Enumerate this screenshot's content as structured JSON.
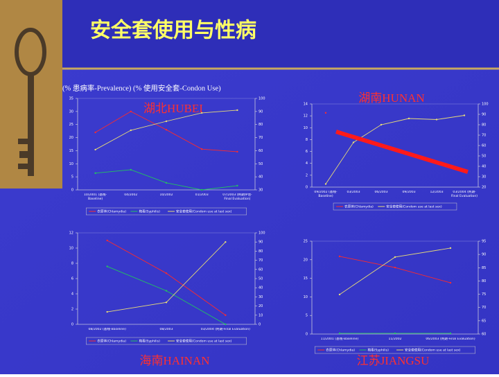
{
  "slide": {
    "title": "安全套使用与性病",
    "subtitle": "(% 患病率-Prevalence)   (% 使用安全套-Condon Use)"
  },
  "chart_data": [
    {
      "type": "line",
      "title": "湖北HUBEI",
      "categories": [
        "10/2001 (基线-Baseline)",
        "04/2002",
        "10/2002",
        "01/2003",
        "07/2003 (终期评估-Final Evaluation)"
      ],
      "series": [
        {
          "name": "衣原体(Chlamydia)",
          "color": "#ff2a2a",
          "values": [
            22,
            30,
            23,
            15.6,
            14.6
          ]
        },
        {
          "name": "梅毒(Syphilis)",
          "color": "#22c55e",
          "values": [
            6.4,
            7.7,
            2.7,
            0,
            1.6
          ]
        },
        {
          "name": "安全套使用(Condom use at last sex)",
          "color": "#e8dc78",
          "axis": "y2",
          "values": [
            60.8,
            75.6,
            82.5,
            88.9,
            91
          ]
        }
      ],
      "ylim": [
        0,
        35
      ],
      "yticks": [
        0,
        5,
        10,
        15,
        20,
        25,
        30,
        35
      ],
      "y2lim": [
        30,
        100
      ],
      "y2ticks": [
        30,
        40,
        50,
        60,
        70,
        80,
        90,
        100
      ]
    },
    {
      "type": "line",
      "title": "湖南HUNAN",
      "categories": [
        "09/2002 (基线-Baseline)",
        "03/2003",
        "06/2003",
        "09/2003",
        "12/2003",
        "03/2004 (终期-Final Evaluation)"
      ],
      "series": [
        {
          "name": "衣原体(Chlamydia)",
          "color": "#ff2a2a",
          "values": [
            12.5,
            null,
            null,
            null,
            null,
            null
          ]
        },
        {
          "name": "安全套使用(Condom use at last sex)",
          "color": "#e8dc78",
          "axis": "y2",
          "values": [
            23,
            63,
            80,
            86,
            85,
            89
          ]
        }
      ],
      "ylim": [
        0,
        14
      ],
      "yticks": [
        0,
        2,
        4,
        6,
        8,
        10,
        12,
        14
      ],
      "y2lim": [
        20,
        100
      ],
      "y2ticks": [
        20,
        30,
        40,
        50,
        60,
        70,
        80,
        90,
        100
      ]
    },
    {
      "type": "line",
      "title": "海南HAINAN",
      "categories": [
        "08/2002 (基线-Baseline)",
        "08/2003",
        "03/2004 (终期-Final Evaluation)"
      ],
      "series": [
        {
          "name": "衣原体(Chlamydia)",
          "color": "#ff2a2a",
          "values": [
            11,
            6.7,
            1.2
          ]
        },
        {
          "name": "梅毒(Syphilis)",
          "color": "#22c55e",
          "values": [
            7.6,
            4.4,
            0
          ]
        },
        {
          "name": "安全套使用(Condom use at last sex)",
          "color": "#e8dc78",
          "axis": "y2",
          "values": [
            13.6,
            24,
            90
          ]
        }
      ],
      "ylim": [
        0,
        12
      ],
      "yticks": [
        0,
        2,
        4,
        6,
        8,
        10,
        12
      ],
      "y2lim": [
        0,
        100
      ],
      "y2ticks": [
        0,
        10,
        20,
        30,
        40,
        50,
        60,
        70,
        80,
        90,
        100
      ]
    },
    {
      "type": "line",
      "title": "江苏JIANGSU",
      "categories": [
        "11/2001 (基线-Baseline)",
        "11/2002",
        "06/2003 (终期-Final Evaluation)"
      ],
      "series": [
        {
          "name": "衣原体(Chlamydia)",
          "color": "#ff2a2a",
          "values": [
            20.9,
            17.9,
            13.8
          ]
        },
        {
          "name": "梅毒(Syphilis)",
          "color": "#22c55e",
          "values": [
            0.2,
            0.2,
            0.2
          ]
        },
        {
          "name": "安全套使用(Condom use at last sex)",
          "color": "#e8dc78",
          "axis": "y2",
          "values": [
            74.9,
            89,
            92.4
          ]
        }
      ],
      "ylim": [
        0,
        25
      ],
      "yticks": [
        0,
        5,
        10,
        15,
        20,
        25
      ],
      "y2lim": [
        60,
        95
      ],
      "y2ticks": [
        60,
        65,
        70,
        75,
        80,
        85,
        90,
        95
      ]
    }
  ]
}
